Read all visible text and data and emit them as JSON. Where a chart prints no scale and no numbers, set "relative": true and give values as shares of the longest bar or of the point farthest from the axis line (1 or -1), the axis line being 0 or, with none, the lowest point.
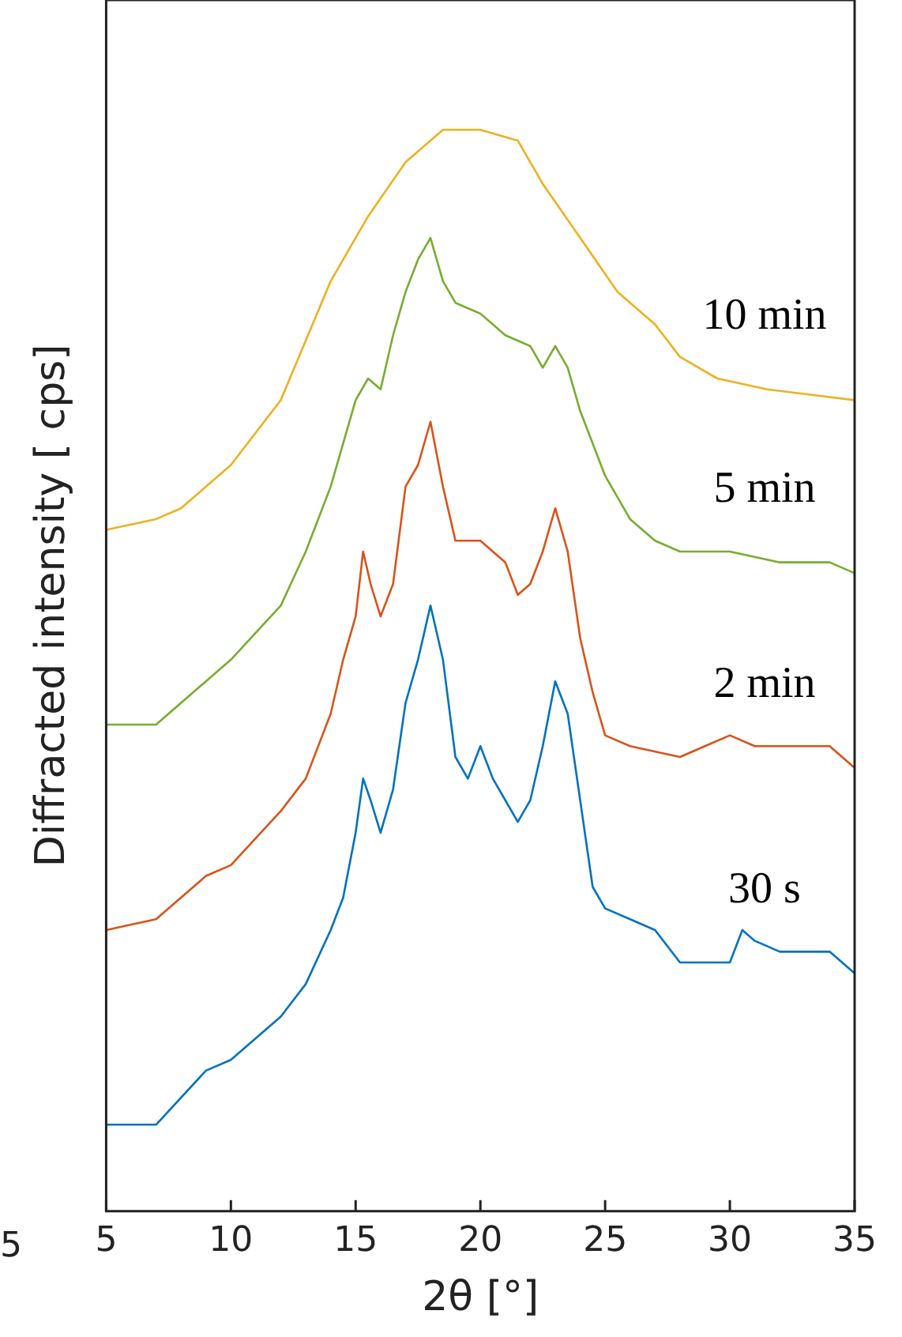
{
  "chart_data": {
    "type": "line",
    "xlabel": "2θ [°]",
    "ylabel": "Diffracted intensity [ cps]",
    "relative": true,
    "xlim": [
      5,
      35
    ],
    "xticks": [
      5,
      10,
      15,
      20,
      25,
      30,
      35
    ],
    "grid": false,
    "legend": false,
    "marker": "none",
    "line_style": "solid",
    "annotations": [
      "5"
    ],
    "series": [
      {
        "name": "30 s",
        "color": "#0072bd",
        "x": [
          5,
          7,
          9,
          10,
          12,
          13,
          14,
          14.5,
          15,
          15.3,
          15.6,
          16,
          16.5,
          17,
          17.5,
          18,
          18.5,
          19,
          19.5,
          20,
          20.5,
          21,
          21.5,
          22,
          22.5,
          23,
          23.5,
          24,
          24.5,
          25,
          26,
          27,
          28,
          29,
          30,
          30.5,
          31,
          32,
          33,
          34,
          35
        ],
        "values": [
          0.08,
          0.08,
          0.13,
          0.14,
          0.18,
          0.21,
          0.26,
          0.29,
          0.35,
          0.4,
          0.38,
          0.35,
          0.39,
          0.47,
          0.51,
          0.56,
          0.51,
          0.42,
          0.4,
          0.43,
          0.4,
          0.38,
          0.36,
          0.38,
          0.43,
          0.49,
          0.46,
          0.38,
          0.3,
          0.28,
          0.27,
          0.26,
          0.23,
          0.23,
          0.23,
          0.26,
          0.25,
          0.24,
          0.24,
          0.24,
          0.22
        ]
      },
      {
        "name": "2 min",
        "color": "#d95319",
        "x": [
          5,
          7,
          9,
          10,
          12,
          13,
          14,
          14.5,
          15,
          15.3,
          15.6,
          16,
          16.5,
          17,
          17.5,
          18,
          18.5,
          19,
          20,
          21,
          21.5,
          22,
          22.5,
          23,
          23.5,
          24,
          24.5,
          25,
          26,
          28,
          29,
          30,
          31,
          32,
          33,
          34,
          35
        ],
        "values": [
          0.26,
          0.27,
          0.31,
          0.32,
          0.37,
          0.4,
          0.46,
          0.51,
          0.55,
          0.61,
          0.58,
          0.55,
          0.58,
          0.67,
          0.69,
          0.73,
          0.67,
          0.62,
          0.62,
          0.6,
          0.57,
          0.58,
          0.61,
          0.65,
          0.61,
          0.53,
          0.48,
          0.44,
          0.43,
          0.42,
          0.43,
          0.44,
          0.43,
          0.43,
          0.43,
          0.43,
          0.41
        ]
      },
      {
        "name": "5 min",
        "color": "#77ac30",
        "x": [
          5,
          7,
          9,
          10,
          12,
          13,
          14,
          15,
          15.5,
          16,
          16.5,
          17,
          17.5,
          18,
          18.5,
          19,
          20,
          21,
          22,
          22.5,
          23,
          23.5,
          24,
          25,
          26,
          27,
          28,
          30,
          32,
          34,
          35
        ],
        "values": [
          0.45,
          0.45,
          0.49,
          0.51,
          0.56,
          0.61,
          0.67,
          0.75,
          0.77,
          0.76,
          0.81,
          0.85,
          0.88,
          0.9,
          0.86,
          0.84,
          0.83,
          0.81,
          0.8,
          0.78,
          0.8,
          0.78,
          0.74,
          0.68,
          0.64,
          0.62,
          0.61,
          0.61,
          0.6,
          0.6,
          0.59
        ]
      },
      {
        "name": "10 min",
        "color": "#edb120",
        "x": [
          5,
          7,
          8,
          9,
          10,
          12,
          14,
          15.5,
          17,
          18.5,
          20,
          21.5,
          22.5,
          24,
          25.5,
          27,
          28,
          29.5,
          31.5,
          35
        ],
        "values": [
          0.63,
          0.64,
          0.65,
          0.67,
          0.69,
          0.75,
          0.86,
          0.92,
          0.97,
          1.0,
          1.0,
          0.99,
          0.95,
          0.9,
          0.85,
          0.82,
          0.79,
          0.77,
          0.76,
          0.75
        ]
      }
    ]
  }
}
